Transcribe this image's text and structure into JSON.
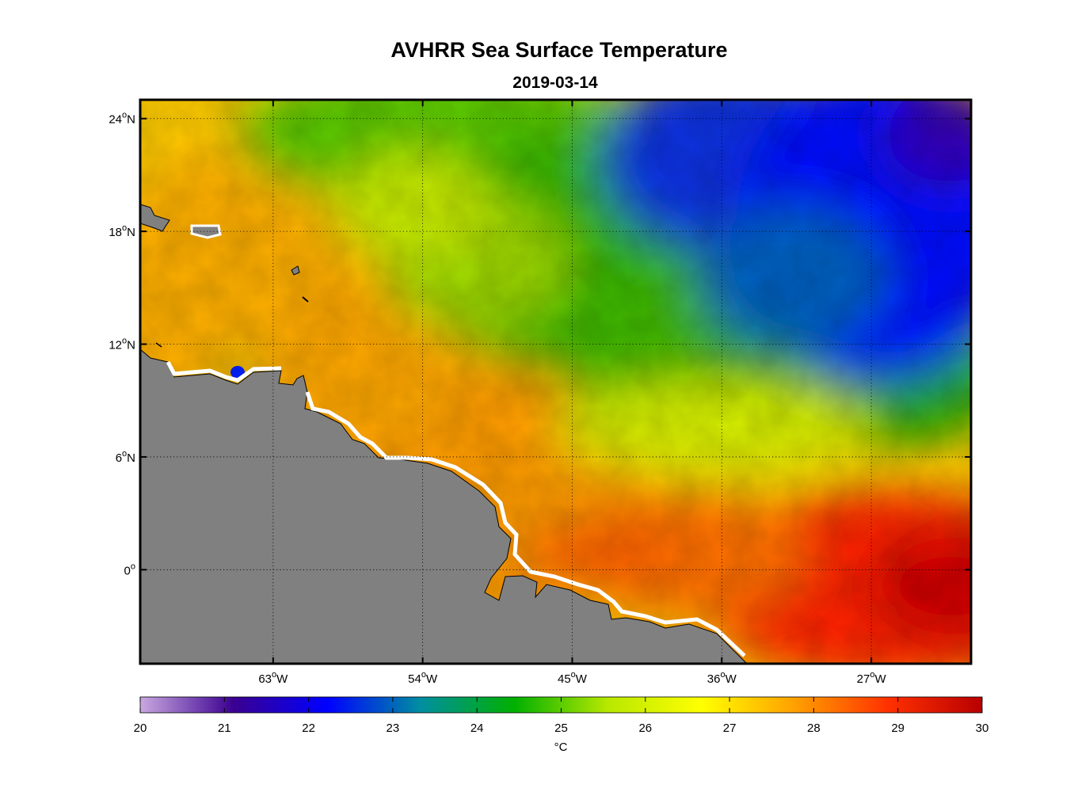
{
  "figure": {
    "title": "AVHRR Sea Surface Temperature",
    "subtitle": "2019-03-14"
  },
  "map": {
    "lon_range": [
      -71,
      -21
    ],
    "lat_range": [
      -5,
      25
    ],
    "lon_ticks": [
      {
        "value": -63,
        "num": "63",
        "hemi": "W"
      },
      {
        "value": -54,
        "num": "54",
        "hemi": "W"
      },
      {
        "value": -45,
        "num": "45",
        "hemi": "W"
      },
      {
        "value": -36,
        "num": "36",
        "hemi": "W"
      },
      {
        "value": -27,
        "num": "27",
        "hemi": "W"
      }
    ],
    "lat_ticks": [
      {
        "value": 24,
        "num": "24",
        "hemi": "N"
      },
      {
        "value": 18,
        "num": "18",
        "hemi": "N"
      },
      {
        "value": 12,
        "num": "12",
        "hemi": "N"
      },
      {
        "value": 6,
        "num": "6",
        "hemi": "N"
      },
      {
        "value": 0,
        "num": "0",
        "hemi": ""
      }
    ],
    "degree_symbol": "o",
    "land_color": "#808080",
    "grid": "dotted"
  },
  "colorbar": {
    "min": 20,
    "max": 30,
    "ticks": [
      "20",
      "21",
      "22",
      "23",
      "24",
      "25",
      "26",
      "27",
      "28",
      "29",
      "30"
    ],
    "unit": "°C",
    "colors": [
      "#c9a8e0",
      "#3a0090",
      "#0000ff",
      "#008fa0",
      "#00b000",
      "#b8e800",
      "#ffff00",
      "#ffa000",
      "#ff3000",
      "#b80000"
    ]
  }
}
